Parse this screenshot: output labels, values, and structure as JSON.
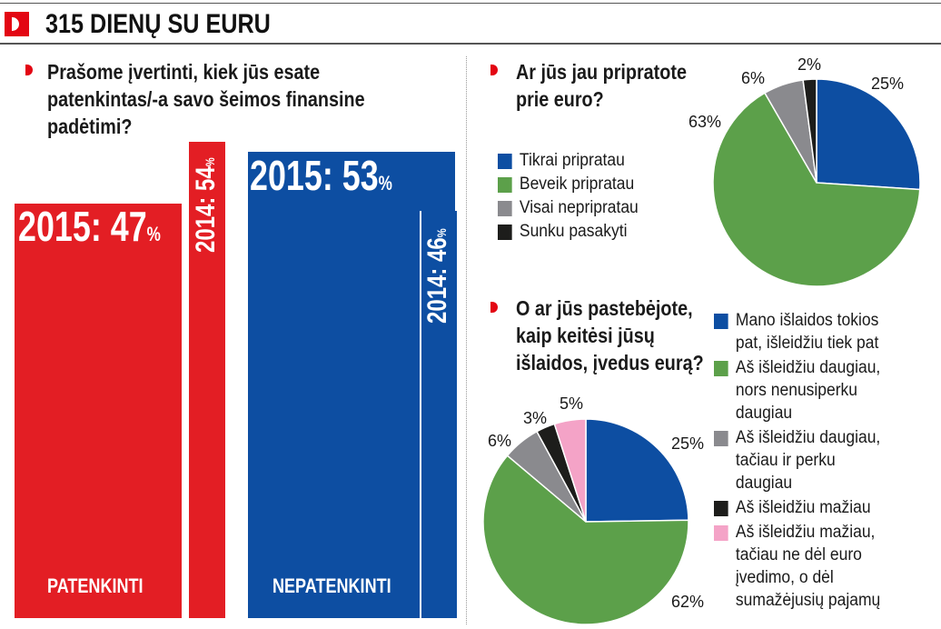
{
  "header": {
    "title": "315 DIENŲ SU EURU"
  },
  "colors": {
    "red": "#e31e24",
    "blue": "#0d4ea2",
    "green": "#5ca04a",
    "gray": "#8a8a8e",
    "black": "#1d1d1b",
    "pink": "#f4a3c7"
  },
  "chart_data": [
    {
      "type": "bar",
      "title": "Prašome įvertinti, kiek jūs esate patenkintas/-a savo šeimos finansine padėtimi?",
      "title_lines": [
        "Prašome įvertinti, kiek jūs esate",
        "patenkintas/-a savo šeimos finansine",
        "padėtimi?"
      ],
      "categories": [
        "PATENKINTI",
        "NEPATENKINTI"
      ],
      "series": [
        {
          "name": "2015",
          "values": [
            47,
            53
          ]
        },
        {
          "name": "2014",
          "values": [
            54,
            46
          ]
        }
      ],
      "labels": {
        "satisfied_2015": "2015: 47",
        "satisfied_2014": "2014: 54",
        "unsatisfied_2015": "2015: 53",
        "unsatisfied_2014": "2014: 46",
        "unit": "%"
      }
    },
    {
      "type": "pie",
      "title": "Ar jūs jau pripratote prie euro?",
      "title_lines": [
        "Ar jūs jau pripratote",
        "prie euro?"
      ],
      "categories": [
        "Tikrai pripratau",
        "Beveik pripratau",
        "Visai nepripratau",
        "Sunku pasakyti"
      ],
      "values": [
        25,
        63,
        6,
        2
      ],
      "value_labels": [
        "25%",
        "63%",
        "6%",
        "2%"
      ],
      "colors": [
        "#0d4ea2",
        "#5ca04a",
        "#8a8a8e",
        "#1d1d1b"
      ]
    },
    {
      "type": "pie",
      "title": "O ar jūs pastebėjote, kaip keitėsi jūsų išlaidos, įvedus eurą?",
      "title_lines": [
        "O ar jūs pastebėjote,",
        "kaip keitėsi jūsų",
        "išlaidos, įvedus eurą?"
      ],
      "categories": [
        "Mano išlaidos tokios pat, išleidžiu tiek pat",
        "Aš išleidžiu daugiau, nors nenusiperku daugiau",
        "Aš išleidžiu daugiau, tačiau ir perku daugiau",
        "Aš išleidžiu mažiau",
        "Aš išleidžiu mažiau, tačiau ne dėl euro įvedimo, o dėl sumažėjusių pajamų"
      ],
      "legend_lines": [
        [
          "Mano išlaidos tokios",
          "pat, išleidžiu tiek pat"
        ],
        [
          "Aš išleidžiu daugiau,",
          "nors nenusiperku",
          "daugiau"
        ],
        [
          "Aš išleidžiu daugiau,",
          "tačiau ir perku",
          "daugiau"
        ],
        [
          "Aš išleidžiu mažiau"
        ],
        [
          "Aš išleidžiu mažiau,",
          "tačiau ne dėl euro",
          "įvedimo, o dėl",
          "sumažėjusių pajamų"
        ]
      ],
      "values": [
        25,
        62,
        6,
        3,
        5
      ],
      "value_labels": [
        "25%",
        "62%",
        "6%",
        "3%",
        "5%"
      ],
      "colors": [
        "#0d4ea2",
        "#5ca04a",
        "#8a8a8e",
        "#1d1d1b",
        "#f4a3c7"
      ]
    }
  ]
}
